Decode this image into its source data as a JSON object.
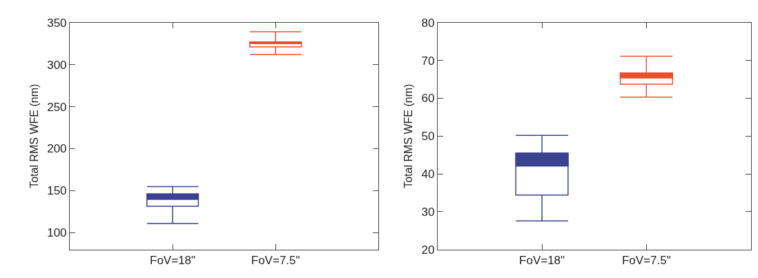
{
  "chart_data": [
    {
      "type": "box",
      "ylabel": "Total RMS WFE (nm)",
      "categories": [
        "FoV=18\"",
        "FoV=7.5\""
      ],
      "colors": [
        "#3b4290",
        "#e8502e"
      ],
      "boxes": [
        {
          "low": 111,
          "q1": 131.5,
          "median": 140,
          "q3": 146,
          "high": 155
        },
        {
          "low": 312,
          "q1": 321,
          "median": 325,
          "q3": 327,
          "high": 339
        }
      ],
      "ylim": [
        80,
        350
      ],
      "yticks": [
        100,
        150,
        200,
        250,
        300,
        350
      ]
    },
    {
      "type": "box",
      "ylabel": "Total RMS WFE (nm)",
      "categories": [
        "FoV=18\"",
        "FoV=7.5\""
      ],
      "colors": [
        "#3b4290",
        "#e8502e"
      ],
      "boxes": [
        {
          "low": 27.6,
          "q1": 34.4,
          "median": 42.1,
          "q3": 45.5,
          "high": 50.2
        },
        {
          "low": 60.3,
          "q1": 63.7,
          "median": 65.4,
          "q3": 66.7,
          "high": 71.1
        }
      ],
      "ylim": [
        20,
        80
      ],
      "yticks": [
        20,
        30,
        40,
        50,
        60,
        70,
        80
      ]
    }
  ]
}
